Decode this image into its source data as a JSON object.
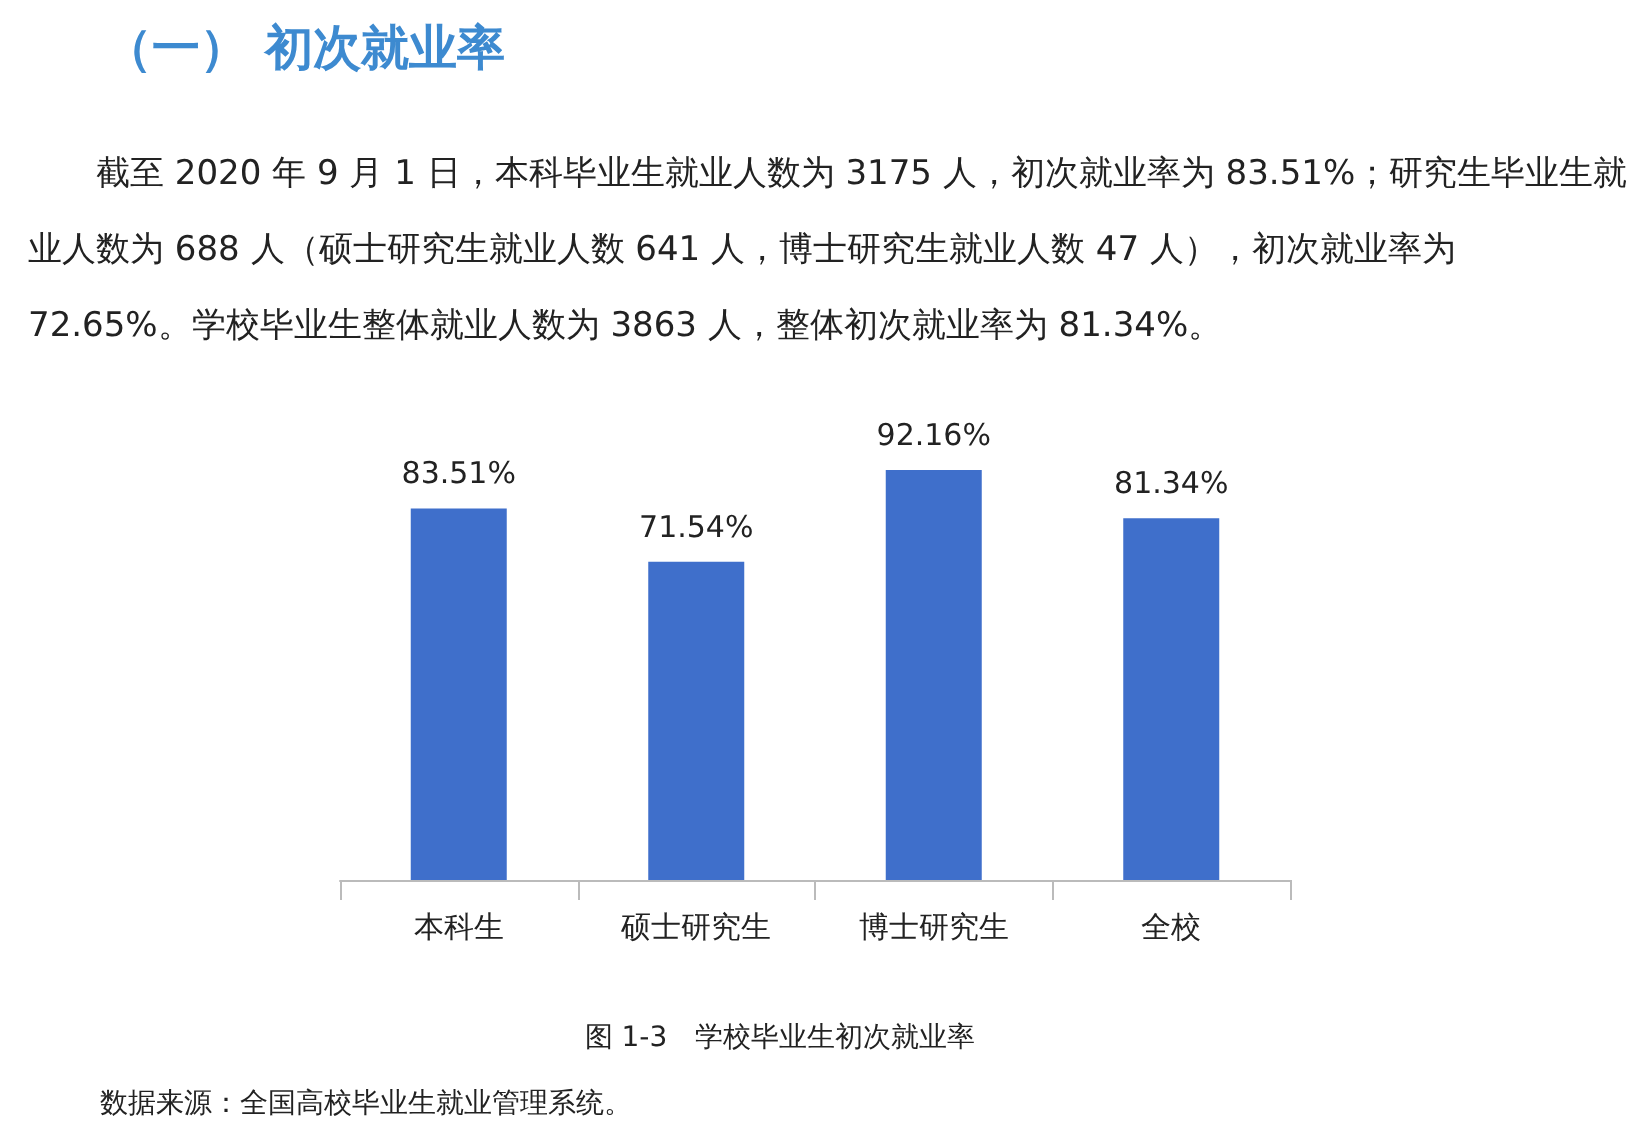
{
  "chart_data": {
    "type": "bar",
    "title": "（一） 初次就业率",
    "subtitle": "截至 2020 年 9 月 1 日，本科毕业生就业人数为 3175 人，初次就业率为 83.51%；研究生毕业生就业人数为 688 人（硕士研究生就业人数 641 人，博士研究生就业人数 47 人），初次就业率为 72.65%。学校毕业生整体就业人数为 3863 人，整体初次就业率为 81.34%。",
    "categories": [
      "本科生",
      "硕士研究生",
      "博士研究生",
      "全校"
    ],
    "values": [
      83.51,
      71.54,
      92.16,
      81.34
    ],
    "value_labels": [
      "83.51%",
      "71.54%",
      "92.16%",
      "81.34%"
    ],
    "color": "#3f6fcb",
    "tick_labels": "x",
    "annotations": [
      "图 1-3　学校毕业生初次就业率",
      "数据来源：全国高校毕业生就业管理系统。"
    ]
  }
}
